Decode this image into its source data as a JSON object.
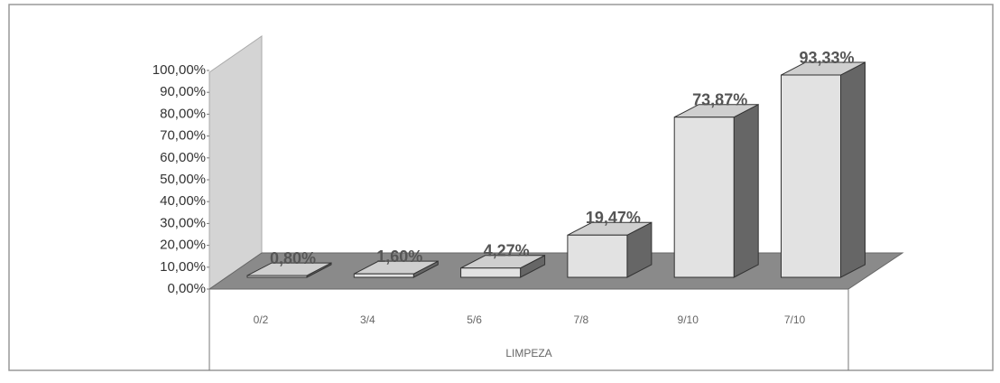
{
  "chart_data": {
    "type": "bar3d",
    "categories": [
      "0/2",
      "3/4",
      "5/6",
      "7/8",
      "9/10",
      "7/10"
    ],
    "values": [
      0.8,
      1.6,
      4.27,
      19.47,
      73.87,
      93.33
    ],
    "value_labels": [
      "0,80%",
      "1,60%",
      "4,27%",
      "19,47%",
      "73,87%",
      "93,33%"
    ],
    "xlabel": "LIMPEZA",
    "color": "#e2e2e2",
    "ylim": [
      0,
      100
    ],
    "yticks": [
      {
        "value": 0,
        "label": "0,00%"
      },
      {
        "value": 10,
        "label": "10,00%"
      },
      {
        "value": 20,
        "label": "20,00%"
      },
      {
        "value": 30,
        "label": "30,00%"
      },
      {
        "value": 40,
        "label": "40,00%"
      },
      {
        "value": 50,
        "label": "50,00%"
      },
      {
        "value": 60,
        "label": "60,00%"
      },
      {
        "value": 70,
        "label": "70,00%"
      },
      {
        "value": 80,
        "label": "80,00%"
      },
      {
        "value": 90,
        "label": "90,00%"
      },
      {
        "value": 100,
        "label": "100,00%"
      }
    ]
  }
}
